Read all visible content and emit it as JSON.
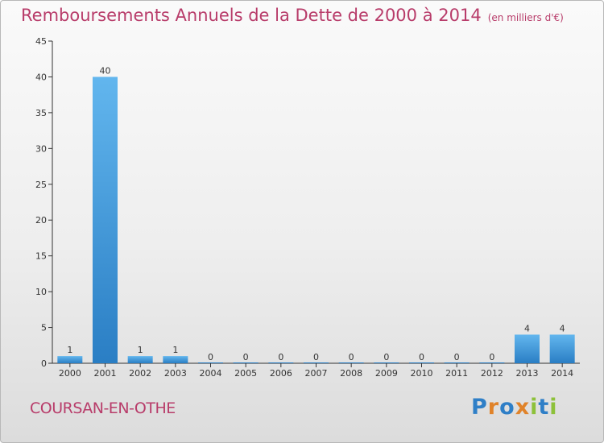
{
  "header": {
    "title": "Remboursements Annuels de la Dette de 2000 à 2014",
    "unit": "(en milliers d'€)"
  },
  "footer": {
    "commune": "COURSAN-EN-OTHE",
    "logo": "Proxiti"
  },
  "colors": {
    "title": "#b83c6a",
    "bar_top": "#62b6ee",
    "bar_bottom": "#2a7ec4",
    "axis": "#333333",
    "logo": [
      "#2f7fc7",
      "#e0832a",
      "#2f7fc7",
      "#e0832a",
      "#8dc13a",
      "#2f7fc7",
      "#8dc13a"
    ]
  },
  "chart_data": {
    "type": "bar",
    "title": "Remboursements Annuels de la Dette de 2000 à 2014",
    "categories": [
      "2000",
      "2001",
      "2002",
      "2003",
      "2004",
      "2005",
      "2006",
      "2007",
      "2008",
      "2009",
      "2010",
      "2011",
      "2012",
      "2013",
      "2014"
    ],
    "values": [
      1,
      40,
      1,
      1,
      0,
      0,
      0,
      0,
      0,
      0,
      0,
      0,
      0,
      4,
      4
    ],
    "data_labels": [
      "1",
      "40",
      "1",
      "1",
      "0",
      "0",
      "0",
      "0",
      "0",
      "0",
      "0",
      "0",
      "0",
      "4",
      "4"
    ],
    "ylim": [
      0,
      45
    ],
    "yticks": [
      0,
      5,
      10,
      15,
      20,
      25,
      30,
      35,
      40,
      45
    ],
    "xlabel": "",
    "ylabel": "",
    "grid": false
  }
}
